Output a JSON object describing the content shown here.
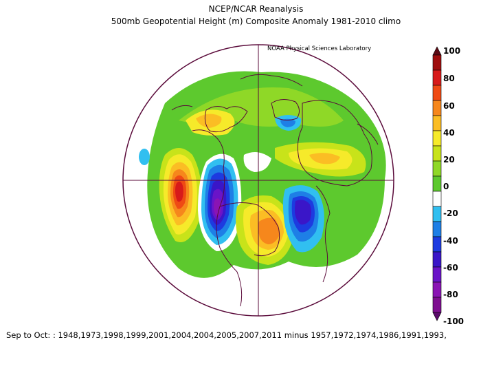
{
  "title": "NCEP/NCAR Reanalysis",
  "subtitle": "500mb Geopotential Height (m) Composite Anomaly 1981-2010 climo",
  "credit": "NOAA Physical Sciences Laboratory",
  "footer": "Sep to Oct: : 1948,1973,1998,1999,2001,2004,2004,2005,2007,2011  minus 1957,1972,1974,1986,1991,1993,",
  "colorbar": {
    "labels": [
      "100",
      "80",
      "60",
      "40",
      "20",
      "0",
      "-20",
      "-40",
      "-60",
      "-80",
      "-100"
    ],
    "colors": [
      "#5c0a14",
      "#9e0e0e",
      "#d71a1a",
      "#ef4a14",
      "#f6871c",
      "#fbbd24",
      "#f6ea2a",
      "#c8e31a",
      "#8fd827",
      "#5dc92e",
      "#ffffff",
      "#31bff0",
      "#1e7fe6",
      "#1d3be0",
      "#3a16c8",
      "#6a14c8",
      "#8a14b4",
      "#7e0f90",
      "#5a0a6a"
    ]
  },
  "map": {
    "projection": "north polar stereographic",
    "variable": "500mb geopotential height anomaly",
    "units": "m"
  }
}
